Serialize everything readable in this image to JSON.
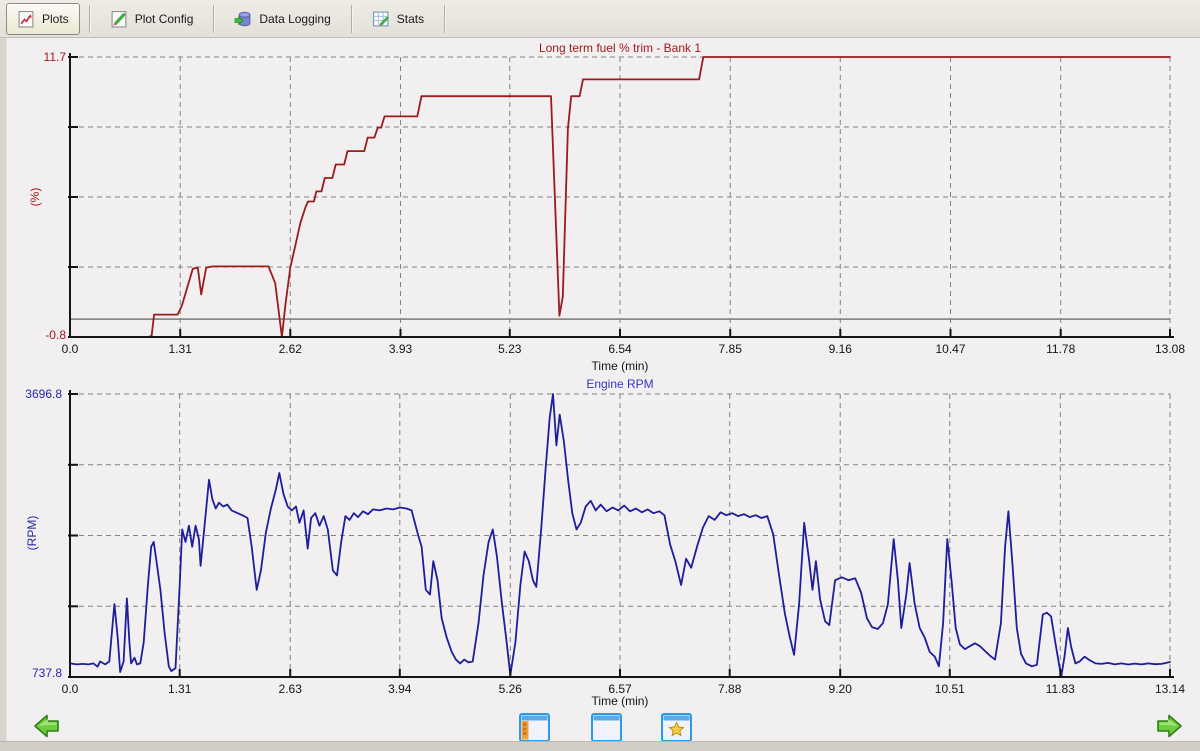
{
  "tab_bar": {
    "tabs": [
      {
        "id": "plots",
        "label": "Plots",
        "icon": "line-chart-page-icon",
        "selected": true
      },
      {
        "id": "plot-config",
        "label": "Plot Config",
        "icon": "page-pencil-icon",
        "selected": false
      },
      {
        "id": "data-logging",
        "label": "Data Logging",
        "icon": "database-import-icon",
        "selected": false
      },
      {
        "id": "stats",
        "label": "Stats",
        "icon": "table-pencil-icon",
        "selected": false
      }
    ]
  },
  "footer": {
    "nav_prev_icon": "green-arrow-left-icon",
    "nav_next_icon": "green-arrow-right-icon",
    "view_buttons": [
      {
        "icon": "window-sidebar-icon"
      },
      {
        "icon": "window-blank-icon"
      },
      {
        "icon": "window-favorites-icon"
      }
    ]
  },
  "chart_data": [
    {
      "type": "line",
      "title": "Long term fuel % trim - Bank 1",
      "xlabel": "Time (min)",
      "ylabel": "(%)",
      "line_color": "#9b1c1c",
      "title_color": "#a21919",
      "axis_label_color": "#a21919",
      "xlim": [
        0,
        13.08
      ],
      "ylim": [
        -0.8,
        11.7
      ],
      "x_tick_labels": [
        "0.0",
        "1.31",
        "2.62",
        "3.93",
        "5.23",
        "6.54",
        "7.85",
        "9.16",
        "10.47",
        "11.78",
        "13.08"
      ],
      "y_grid_values": [
        2.325,
        5.45,
        8.575,
        11.7
      ],
      "y_max_label": "11.7",
      "y_min_label": "-0.8",
      "zero_ref_line": 0,
      "grid": "dashed",
      "legend": "none",
      "points": [
        [
          0,
          -0.8
        ],
        [
          0.93,
          -0.8
        ],
        [
          0.97,
          -0.75
        ],
        [
          1.0,
          0.2
        ],
        [
          1.28,
          0.2
        ],
        [
          1.33,
          0.6
        ],
        [
          1.46,
          2.25
        ],
        [
          1.52,
          2.3
        ],
        [
          1.56,
          1.1
        ],
        [
          1.62,
          2.3
        ],
        [
          1.7,
          2.35
        ],
        [
          2.36,
          2.35
        ],
        [
          2.44,
          1.6
        ],
        [
          2.52,
          -0.8
        ],
        [
          2.56,
          0.6
        ],
        [
          2.62,
          2.3
        ],
        [
          2.68,
          3.3
        ],
        [
          2.74,
          4.3
        ],
        [
          2.8,
          5.0
        ],
        [
          2.83,
          5.25
        ],
        [
          2.9,
          5.25
        ],
        [
          2.93,
          5.7
        ],
        [
          2.99,
          5.7
        ],
        [
          3.03,
          6.3
        ],
        [
          3.12,
          6.3
        ],
        [
          3.16,
          6.9
        ],
        [
          3.26,
          6.9
        ],
        [
          3.3,
          7.5
        ],
        [
          3.5,
          7.5
        ],
        [
          3.54,
          8.1
        ],
        [
          3.62,
          8.1
        ],
        [
          3.66,
          8.55
        ],
        [
          3.7,
          8.55
        ],
        [
          3.74,
          9.05
        ],
        [
          4.13,
          9.05
        ],
        [
          4.18,
          9.95
        ],
        [
          5.72,
          9.95
        ],
        [
          5.78,
          4.0
        ],
        [
          5.82,
          0.15
        ],
        [
          5.86,
          1.0
        ],
        [
          5.92,
          8.5
        ],
        [
          5.96,
          9.95
        ],
        [
          6.06,
          9.95
        ],
        [
          6.1,
          10.7
        ],
        [
          7.48,
          10.7
        ],
        [
          7.53,
          11.7
        ],
        [
          13.08,
          11.7
        ]
      ]
    },
    {
      "type": "line",
      "title": "Engine RPM",
      "xlabel": "Time (min)",
      "ylabel": "(RPM)",
      "line_color": "#1d1d9e",
      "title_color": "#3535cd",
      "axis_label_color": "#2525a8",
      "xlim": [
        0,
        13.14
      ],
      "ylim": [
        737.8,
        3696.8
      ],
      "x_tick_labels": [
        "0.0",
        "1.31",
        "2.63",
        "3.94",
        "5.26",
        "6.57",
        "7.88",
        "9.20",
        "10.51",
        "11.83",
        "13.14"
      ],
      "y_grid_values": [
        1477.55,
        2217.3,
        2957.05,
        3696.8
      ],
      "y_max_label": "3696.8",
      "y_min_label": "737.8",
      "zero_ref_line": null,
      "grid": "dashed",
      "legend": "none",
      "points": [
        [
          0,
          880
        ],
        [
          0.08,
          870
        ],
        [
          0.15,
          875
        ],
        [
          0.22,
          870
        ],
        [
          0.28,
          880
        ],
        [
          0.33,
          845
        ],
        [
          0.36,
          900
        ],
        [
          0.42,
          870
        ],
        [
          0.47,
          900
        ],
        [
          0.53,
          1500
        ],
        [
          0.57,
          1150
        ],
        [
          0.6,
          790
        ],
        [
          0.64,
          900
        ],
        [
          0.68,
          1560
        ],
        [
          0.71,
          1100
        ],
        [
          0.73,
          880
        ],
        [
          0.77,
          940
        ],
        [
          0.8,
          870
        ],
        [
          0.84,
          880
        ],
        [
          0.88,
          1100
        ],
        [
          0.93,
          1700
        ],
        [
          0.97,
          2100
        ],
        [
          1.0,
          2150
        ],
        [
          1.04,
          1900
        ],
        [
          1.08,
          1650
        ],
        [
          1.13,
          1200
        ],
        [
          1.18,
          850
        ],
        [
          1.21,
          800
        ],
        [
          1.26,
          830
        ],
        [
          1.31,
          1700
        ],
        [
          1.34,
          2280
        ],
        [
          1.38,
          2150
        ],
        [
          1.42,
          2320
        ],
        [
          1.46,
          2100
        ],
        [
          1.5,
          2320
        ],
        [
          1.54,
          2180
        ],
        [
          1.56,
          1900
        ],
        [
          1.6,
          2250
        ],
        [
          1.66,
          2800
        ],
        [
          1.7,
          2600
        ],
        [
          1.74,
          2500
        ],
        [
          1.78,
          2560
        ],
        [
          1.83,
          2520
        ],
        [
          1.88,
          2540
        ],
        [
          1.93,
          2480
        ],
        [
          1.98,
          2460
        ],
        [
          2.03,
          2440
        ],
        [
          2.08,
          2420
        ],
        [
          2.12,
          2400
        ],
        [
          2.17,
          2100
        ],
        [
          2.23,
          1650
        ],
        [
          2.28,
          1850
        ],
        [
          2.34,
          2250
        ],
        [
          2.4,
          2500
        ],
        [
          2.46,
          2700
        ],
        [
          2.5,
          2870
        ],
        [
          2.55,
          2650
        ],
        [
          2.6,
          2520
        ],
        [
          2.65,
          2480
        ],
        [
          2.7,
          2520
        ],
        [
          2.74,
          2350
        ],
        [
          2.79,
          2480
        ],
        [
          2.84,
          2080
        ],
        [
          2.88,
          2400
        ],
        [
          2.93,
          2450
        ],
        [
          2.98,
          2320
        ],
        [
          3.03,
          2420
        ],
        [
          3.08,
          2280
        ],
        [
          3.14,
          1850
        ],
        [
          3.19,
          1800
        ],
        [
          3.24,
          2150
        ],
        [
          3.29,
          2420
        ],
        [
          3.34,
          2380
        ],
        [
          3.39,
          2450
        ],
        [
          3.44,
          2410
        ],
        [
          3.5,
          2470
        ],
        [
          3.56,
          2440
        ],
        [
          3.62,
          2490
        ],
        [
          3.7,
          2480
        ],
        [
          3.78,
          2500
        ],
        [
          3.86,
          2490
        ],
        [
          3.94,
          2510
        ],
        [
          4.02,
          2500
        ],
        [
          4.08,
          2480
        ],
        [
          4.15,
          2250
        ],
        [
          4.2,
          2100
        ],
        [
          4.25,
          1650
        ],
        [
          4.3,
          1600
        ],
        [
          4.34,
          1950
        ],
        [
          4.39,
          1750
        ],
        [
          4.44,
          1350
        ],
        [
          4.5,
          1150
        ],
        [
          4.56,
          1000
        ],
        [
          4.61,
          920
        ],
        [
          4.66,
          880
        ],
        [
          4.71,
          920
        ],
        [
          4.76,
          890
        ],
        [
          4.81,
          900
        ],
        [
          4.88,
          1300
        ],
        [
          4.94,
          1800
        ],
        [
          5.0,
          2150
        ],
        [
          5.05,
          2280
        ],
        [
          5.1,
          2000
        ],
        [
          5.16,
          1500
        ],
        [
          5.21,
          1150
        ],
        [
          5.26,
          760
        ],
        [
          5.32,
          1100
        ],
        [
          5.38,
          1700
        ],
        [
          5.43,
          2050
        ],
        [
          5.48,
          1950
        ],
        [
          5.53,
          1750
        ],
        [
          5.57,
          1680
        ],
        [
          5.63,
          2300
        ],
        [
          5.68,
          2900
        ],
        [
          5.73,
          3450
        ],
        [
          5.77,
          3697
        ],
        [
          5.81,
          3160
        ],
        [
          5.85,
          3480
        ],
        [
          5.9,
          3200
        ],
        [
          5.95,
          2800
        ],
        [
          6.0,
          2450
        ],
        [
          6.05,
          2280
        ],
        [
          6.1,
          2350
        ],
        [
          6.16,
          2520
        ],
        [
          6.22,
          2580
        ],
        [
          6.28,
          2480
        ],
        [
          6.34,
          2540
        ],
        [
          6.41,
          2470
        ],
        [
          6.48,
          2510
        ],
        [
          6.55,
          2480
        ],
        [
          6.62,
          2530
        ],
        [
          6.69,
          2470
        ],
        [
          6.76,
          2500
        ],
        [
          6.83,
          2460
        ],
        [
          6.9,
          2490
        ],
        [
          6.97,
          2450
        ],
        [
          7.04,
          2470
        ],
        [
          7.1,
          2430
        ],
        [
          7.17,
          2120
        ],
        [
          7.23,
          1950
        ],
        [
          7.3,
          1700
        ],
        [
          7.36,
          1975
        ],
        [
          7.42,
          1880
        ],
        [
          7.49,
          2100
        ],
        [
          7.56,
          2300
        ],
        [
          7.63,
          2420
        ],
        [
          7.7,
          2380
        ],
        [
          7.77,
          2460
        ],
        [
          7.84,
          2430
        ],
        [
          7.91,
          2450
        ],
        [
          7.98,
          2420
        ],
        [
          8.05,
          2440
        ],
        [
          8.12,
          2410
        ],
        [
          8.19,
          2430
        ],
        [
          8.26,
          2400
        ],
        [
          8.33,
          2420
        ],
        [
          8.4,
          2230
        ],
        [
          8.47,
          1800
        ],
        [
          8.54,
          1400
        ],
        [
          8.6,
          1150
        ],
        [
          8.65,
          970
        ],
        [
          8.71,
          1500
        ],
        [
          8.77,
          2350
        ],
        [
          8.83,
          1950
        ],
        [
          8.87,
          1650
        ],
        [
          8.91,
          1950
        ],
        [
          8.96,
          1550
        ],
        [
          9.02,
          1320
        ],
        [
          9.07,
          1280
        ],
        [
          9.14,
          1750
        ],
        [
          9.22,
          1780
        ],
        [
          9.3,
          1750
        ],
        [
          9.38,
          1770
        ],
        [
          9.45,
          1620
        ],
        [
          9.52,
          1350
        ],
        [
          9.58,
          1260
        ],
        [
          9.65,
          1240
        ],
        [
          9.71,
          1300
        ],
        [
          9.77,
          1500
        ],
        [
          9.84,
          2180
        ],
        [
          9.89,
          1750
        ],
        [
          9.93,
          1250
        ],
        [
          9.99,
          1600
        ],
        [
          10.03,
          1930
        ],
        [
          10.09,
          1500
        ],
        [
          10.15,
          1250
        ],
        [
          10.21,
          1150
        ],
        [
          10.27,
          1000
        ],
        [
          10.33,
          950
        ],
        [
          10.38,
          850
        ],
        [
          10.43,
          1300
        ],
        [
          10.48,
          2180
        ],
        [
          10.53,
          1750
        ],
        [
          10.58,
          1250
        ],
        [
          10.63,
          1080
        ],
        [
          10.69,
          1030
        ],
        [
          10.75,
          1060
        ],
        [
          10.81,
          1090
        ],
        [
          10.87,
          1060
        ],
        [
          10.93,
          1010
        ],
        [
          10.99,
          960
        ],
        [
          11.05,
          920
        ],
        [
          11.12,
          1300
        ],
        [
          11.17,
          2100
        ],
        [
          11.21,
          2470
        ],
        [
          11.26,
          1900
        ],
        [
          11.31,
          1250
        ],
        [
          11.36,
          980
        ],
        [
          11.42,
          880
        ],
        [
          11.49,
          850
        ],
        [
          11.55,
          865
        ],
        [
          11.62,
          1390
        ],
        [
          11.67,
          1410
        ],
        [
          11.72,
          1370
        ],
        [
          11.77,
          1100
        ],
        [
          11.84,
          740
        ],
        [
          11.88,
          950
        ],
        [
          11.92,
          1250
        ],
        [
          11.96,
          1050
        ],
        [
          12.01,
          880
        ],
        [
          12.06,
          900
        ],
        [
          12.12,
          950
        ],
        [
          12.18,
          915
        ],
        [
          12.25,
          880
        ],
        [
          12.32,
          875
        ],
        [
          12.4,
          885
        ],
        [
          12.48,
          870
        ],
        [
          12.56,
          880
        ],
        [
          12.64,
          868
        ],
        [
          12.72,
          878
        ],
        [
          12.8,
          870
        ],
        [
          12.88,
          880
        ],
        [
          12.96,
          872
        ],
        [
          13.04,
          875
        ],
        [
          13.14,
          895
        ]
      ]
    }
  ]
}
